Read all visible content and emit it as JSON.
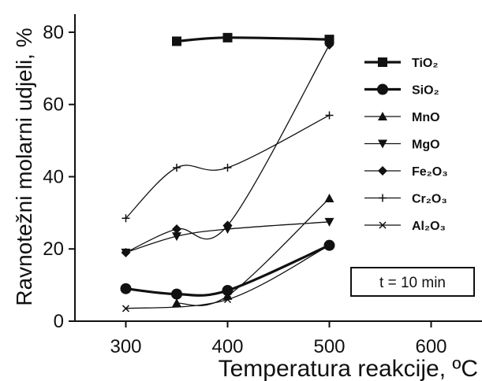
{
  "chart_data": {
    "type": "line",
    "xlabel": "Temperatura reakcije, ºC",
    "ylabel": "Ravnotežni molarni udjeli, %",
    "xlim": [
      250,
      650
    ],
    "ylim": [
      0,
      85
    ],
    "xticks": [
      300,
      400,
      500,
      600
    ],
    "yticks": [
      0,
      20,
      40,
      60,
      80
    ],
    "grid": false,
    "legend_position": "top-right",
    "annotation": "t = 10 min",
    "series": [
      {
        "name": "TiO₂",
        "x": [
          350,
          400,
          500
        ],
        "y": [
          77.5,
          78.5,
          78
        ],
        "marker": "square",
        "stroke_width": 3.2
      },
      {
        "name": "SiO₂",
        "x": [
          300,
          350,
          400,
          500
        ],
        "y": [
          9,
          7.5,
          8.5,
          21
        ],
        "marker": "circle",
        "stroke_width": 3.2
      },
      {
        "name": "MnO",
        "x": [
          350,
          400,
          500
        ],
        "y": [
          5,
          7,
          34
        ],
        "marker": "triangle-up",
        "stroke_width": 1.3
      },
      {
        "name": "MgO",
        "x": [
          300,
          350,
          400,
          500
        ],
        "y": [
          19,
          23.5,
          25.5,
          27.5
        ],
        "marker": "triangle-down",
        "stroke_width": 1.3
      },
      {
        "name": "Fe₂O₃",
        "x": [
          300,
          350,
          400,
          500
        ],
        "y": [
          19,
          25.5,
          26.5,
          76.5
        ],
        "marker": "diamond",
        "stroke_width": 1.3
      },
      {
        "name": "Cr₂O₃",
        "x": [
          300,
          350,
          400,
          500
        ],
        "y": [
          28.5,
          42.5,
          42.5,
          57
        ],
        "marker": "plus",
        "stroke_width": 1.3
      },
      {
        "name": "Al₂O₃",
        "x": [
          300,
          400,
          500
        ],
        "y": [
          3.5,
          6,
          21
        ],
        "marker": "x",
        "stroke_width": 1.3
      }
    ]
  }
}
